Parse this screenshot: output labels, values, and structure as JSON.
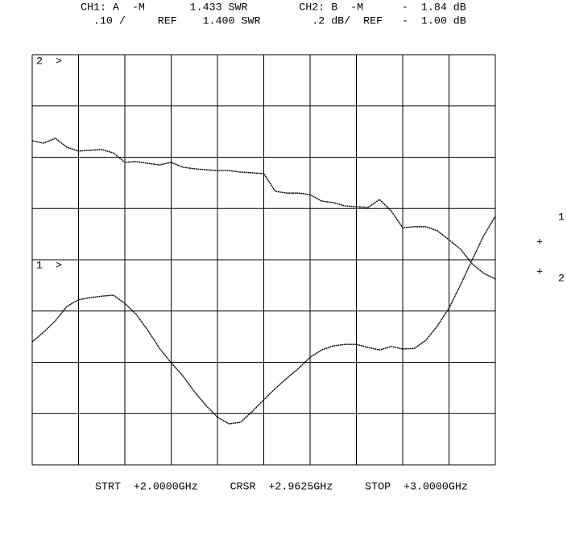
{
  "header": {
    "lines": [
      "CH1: A  -M       1.433 SWR        CH2: B  -M      -  1.84 dB",
      "  .10 /     REF    1.400 SWR        .2 dB/  REF   -  1.00 dB"
    ]
  },
  "chart_data": {
    "type": "line",
    "x": [
      2,
      2.025,
      2.05,
      2.075,
      2.1,
      2.125,
      2.15,
      2.175,
      2.2,
      2.225,
      2.25,
      2.275,
      2.3,
      2.325,
      2.35,
      2.375,
      2.4,
      2.425,
      2.45,
      2.475,
      2.5,
      2.525,
      2.55,
      2.575,
      2.6,
      2.625,
      2.65,
      2.675,
      2.7,
      2.725,
      2.75,
      2.775,
      2.8,
      2.825,
      2.85,
      2.875,
      2.9,
      2.925,
      2.95,
      2.975,
      3
    ],
    "series": [
      {
        "color": "#000000",
        "axis": "y",
        "values": [
          1.24,
          1.259,
          1.281,
          1.309,
          1.322,
          1.326,
          1.329,
          1.331,
          1.315,
          1.293,
          1.262,
          1.227,
          1.199,
          1.174,
          1.143,
          1.116,
          1.093,
          1.08,
          1.083,
          1.104,
          1.127,
          1.149,
          1.169,
          1.188,
          1.21,
          1.224,
          1.232,
          1.235,
          1.235,
          1.229,
          1.224,
          1.231,
          1.226,
          1.227,
          1.243,
          1.271,
          1.306,
          1.351,
          1.4,
          1.447,
          1.485
        ]
      },
      {
        "color": "#000000",
        "axis": "y2",
        "values": [
          -1.336,
          -1.345,
          -1.326,
          -1.361,
          -1.376,
          -1.373,
          -1.37,
          -1.383,
          -1.42,
          -1.417,
          -1.424,
          -1.43,
          -1.42,
          -1.439,
          -1.445,
          -1.449,
          -1.452,
          -1.452,
          -1.458,
          -1.461,
          -1.464,
          -1.533,
          -1.54,
          -1.54,
          -1.546,
          -1.571,
          -1.577,
          -1.59,
          -1.593,
          -1.596,
          -1.565,
          -1.609,
          -1.675,
          -1.671,
          -1.671,
          -1.687,
          -1.722,
          -1.759,
          -1.816,
          -1.853,
          -1.875
        ]
      }
    ],
    "xlim": [
      2,
      3
    ],
    "xticks": [
      2,
      2.1,
      2.2,
      2.3,
      2.4,
      2.5,
      2.6,
      2.7,
      2.8,
      2.9,
      3
    ],
    "ylim": [
      1,
      1.8
    ],
    "yticks": [
      1,
      1.1,
      1.2,
      1.3,
      1.4,
      1.5,
      1.6,
      1.7,
      1.8
    ],
    "y2lim": [
      -2.6,
      -1
    ],
    "grid": true,
    "annotations": [
      "2  >",
      "1  >",
      "1",
      "+",
      "+",
      "2"
    ]
  },
  "footer": "STRT  +2.0000GHz     CRSR  +2.9625GHz     STOP  +3.0000GHz"
}
